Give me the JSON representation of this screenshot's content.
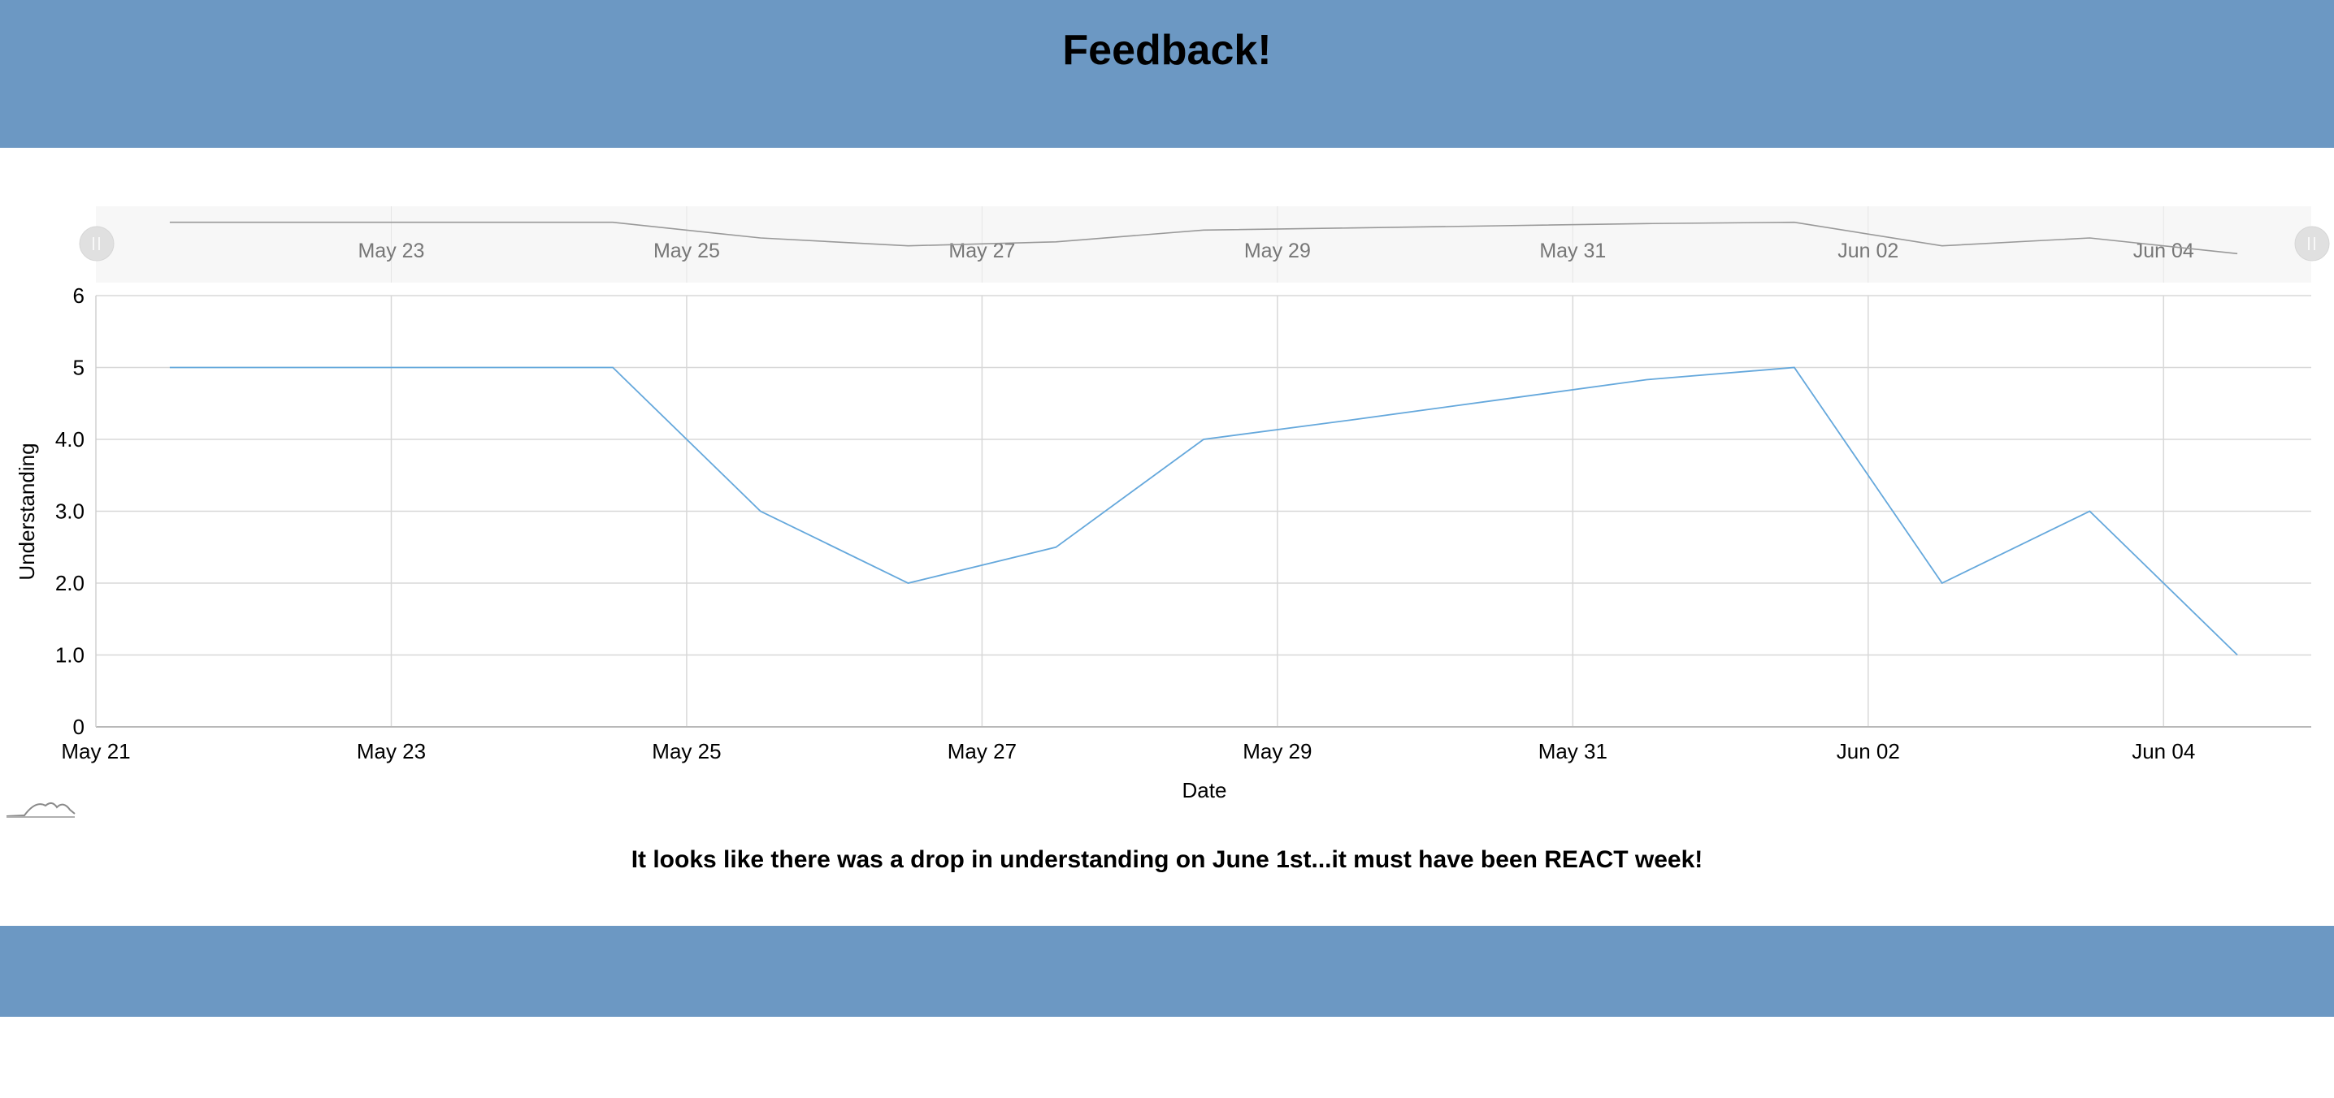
{
  "header": {
    "title": "Feedback!"
  },
  "caption": "It looks like there was a drop in understanding on June 1st...it must have been REACT week!",
  "colors": {
    "banner": "#6c98c3",
    "line": "#65a8dc",
    "navigator_line": "#999999",
    "grid": "#d8d8d8"
  },
  "chart_data": {
    "type": "line",
    "xlabel": "Date",
    "ylabel": "Understanding",
    "ylim": [
      0,
      6
    ],
    "xlim": [
      "2020-05-21",
      "2020-06-05"
    ],
    "y_ticks": [
      "0",
      "1.0",
      "2.0",
      "3.0",
      "4.0",
      "5",
      "6"
    ],
    "x_ticks": [
      {
        "date": "2020-05-21",
        "label": "May 21"
      },
      {
        "date": "2020-05-23",
        "label": "May 23"
      },
      {
        "date": "2020-05-25",
        "label": "May 25"
      },
      {
        "date": "2020-05-27",
        "label": "May 27"
      },
      {
        "date": "2020-05-29",
        "label": "May 29"
      },
      {
        "date": "2020-05-31",
        "label": "May 31"
      },
      {
        "date": "2020-06-02",
        "label": "Jun 02"
      },
      {
        "date": "2020-06-04",
        "label": "Jun 04"
      }
    ],
    "navigator_ticks": [
      "May 23",
      "May 25",
      "May 27",
      "May 29",
      "May 31",
      "Jun 02",
      "Jun 04"
    ],
    "grid": true,
    "legend": "none",
    "series": [
      {
        "x": [
          "2020-05-21",
          "2020-05-22",
          "2020-05-23",
          "2020-05-24",
          "2020-05-25",
          "2020-05-26",
          "2020-05-27",
          "2020-05-28",
          "2020-05-29",
          "2020-05-30",
          "2020-05-31",
          "2020-06-01",
          "2020-06-02",
          "2020-06-03",
          "2020-06-04"
        ],
        "y": [
          5,
          5,
          5,
          5,
          3,
          2,
          2.5,
          4,
          4.27,
          4.55,
          4.83,
          5,
          2,
          3,
          1
        ]
      }
    ]
  }
}
